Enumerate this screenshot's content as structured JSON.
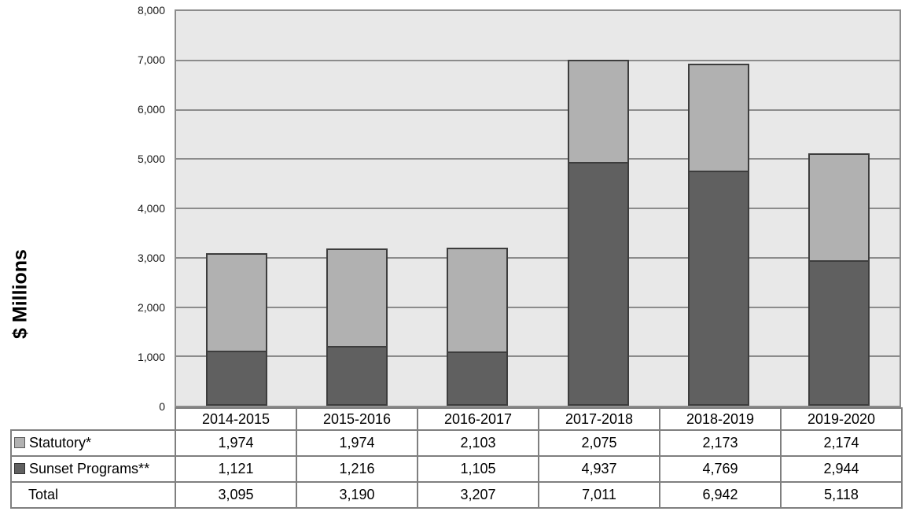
{
  "chart": {
    "ylabel": "$ Millions"
  },
  "chart_data": {
    "type": "bar",
    "stacked": true,
    "title": "",
    "xlabel": "",
    "ylabel": "$ Millions",
    "ylim": [
      0,
      8000
    ],
    "ytick_interval": 1000,
    "ytick_labels": [
      "8,000",
      "7,000",
      "6,000",
      "5,000",
      "4,000",
      "3,000",
      "2,000",
      "1,000",
      "0"
    ],
    "grid": "horizontal gridlines on",
    "legend_position": "left column of data table below chart",
    "plot_background": "#e8e8e8",
    "categories": [
      "2014-2015",
      "2015-2016",
      "2016-2017",
      "2017-2018",
      "2018-2019",
      "2019-2020"
    ],
    "series": [
      {
        "name": "Sunset Programs**",
        "stack_position": "bottom",
        "color": "#606060",
        "values": [
          1121,
          1216,
          1105,
          4937,
          4769,
          2944
        ]
      },
      {
        "name": "Statutory*",
        "stack_position": "top",
        "color": "#b1b1b1",
        "values": [
          1974,
          1974,
          2103,
          2075,
          2173,
          2174
        ]
      }
    ],
    "totals": {
      "label": "Total",
      "values": [
        3095,
        3190,
        3207,
        7011,
        6942,
        5118
      ]
    }
  },
  "table": {
    "col_headers": [
      "2014-2015",
      "2015-2016",
      "2016-2017",
      "2017-2018",
      "2018-2019",
      "2019-2020"
    ],
    "rows": [
      {
        "label": "Statutory*",
        "swatch_color": "#b1b1b1",
        "swatch_border": "#595959",
        "values": [
          "1,974",
          "1,974",
          "2,103",
          "2,075",
          "2,173",
          "2,174"
        ]
      },
      {
        "label": "Sunset Programs**",
        "swatch_color": "#606060",
        "swatch_border": "#333333",
        "values": [
          "1,121",
          "1,216",
          "1,105",
          "4,937",
          "4,769",
          "2,944"
        ]
      },
      {
        "label": "Total",
        "swatch_color": null,
        "swatch_border": null,
        "values": [
          "3,095",
          "3,190",
          "3,207",
          "7,011",
          "6,942",
          "5,118"
        ]
      }
    ]
  },
  "colors": {
    "statutory_fill": "#b1b1b1",
    "sunset_fill": "#606060",
    "bar_border": "#3d3d3d",
    "plot_background": "#e8e8e8",
    "gridline": "#8c8c8c",
    "table_border": "#7f7f7f",
    "text": "#000000"
  }
}
